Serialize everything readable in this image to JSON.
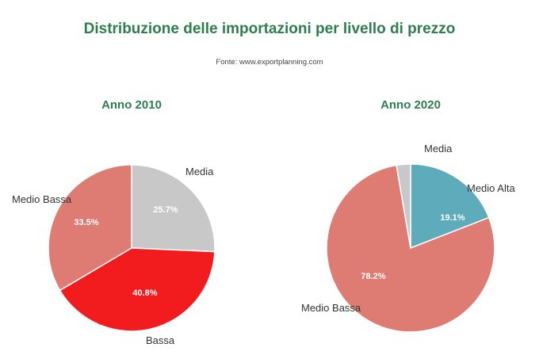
{
  "title": "Distribuzione delle importazioni per livello di prezzo",
  "source": "Fonte: www.exportplanning.com",
  "chart_data": [
    {
      "type": "pie",
      "title": "Anno 2010",
      "slices": [
        {
          "label": "Media",
          "value": 25.7,
          "pct_label": "25.7%",
          "color": "#c8c8c8"
        },
        {
          "label": "Bassa",
          "value": 40.8,
          "pct_label": "40.8%",
          "color": "#f21c1f"
        },
        {
          "label": "Medio Bassa",
          "value": 33.5,
          "pct_label": "33.5%",
          "color": "#de7b72"
        }
      ]
    },
    {
      "type": "pie",
      "title": "Anno 2020",
      "slices": [
        {
          "label": "Medio Alta",
          "value": 19.1,
          "pct_label": "19.1%",
          "color": "#5eabbb"
        },
        {
          "label": "Medio Bassa",
          "value": 78.2,
          "pct_label": "78.2%",
          "color": "#de7b72"
        },
        {
          "label": "Media",
          "value": 2.7,
          "pct_label": "",
          "color": "#c8c8c8"
        }
      ]
    }
  ]
}
